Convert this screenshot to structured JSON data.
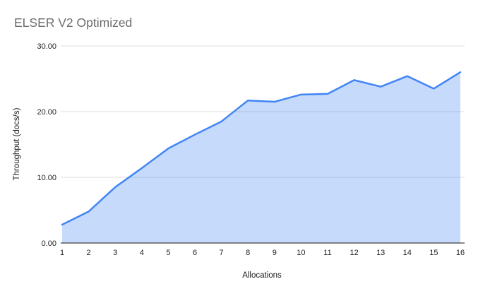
{
  "chart_data": {
    "type": "area",
    "title": "ELSER V2 Optimized",
    "xlabel": "Allocations",
    "ylabel": "Throughput (docs/s)",
    "categories": [
      "1",
      "2",
      "3",
      "4",
      "5",
      "6",
      "7",
      "8",
      "9",
      "10",
      "11",
      "12",
      "13",
      "14",
      "15",
      "16"
    ],
    "values": [
      2.8,
      4.8,
      8.5,
      11.4,
      14.4,
      16.5,
      18.5,
      21.7,
      21.5,
      22.6,
      22.7,
      24.8,
      23.8,
      25.4,
      23.5,
      26.0
    ],
    "ylim": [
      0,
      30
    ],
    "ytick_values": [
      0,
      10,
      20,
      30
    ],
    "ytick_labels": [
      "0.00",
      "10.00",
      "20.00",
      "30.00"
    ],
    "grid": true,
    "legend": "none",
    "colors": {
      "line": "#4285f4",
      "fill": "rgba(66,133,244,0.3)",
      "grid": "#dcdcdc",
      "axis": "#424242",
      "title_text": "#6d6d6d",
      "tick_text": "#222222"
    }
  }
}
